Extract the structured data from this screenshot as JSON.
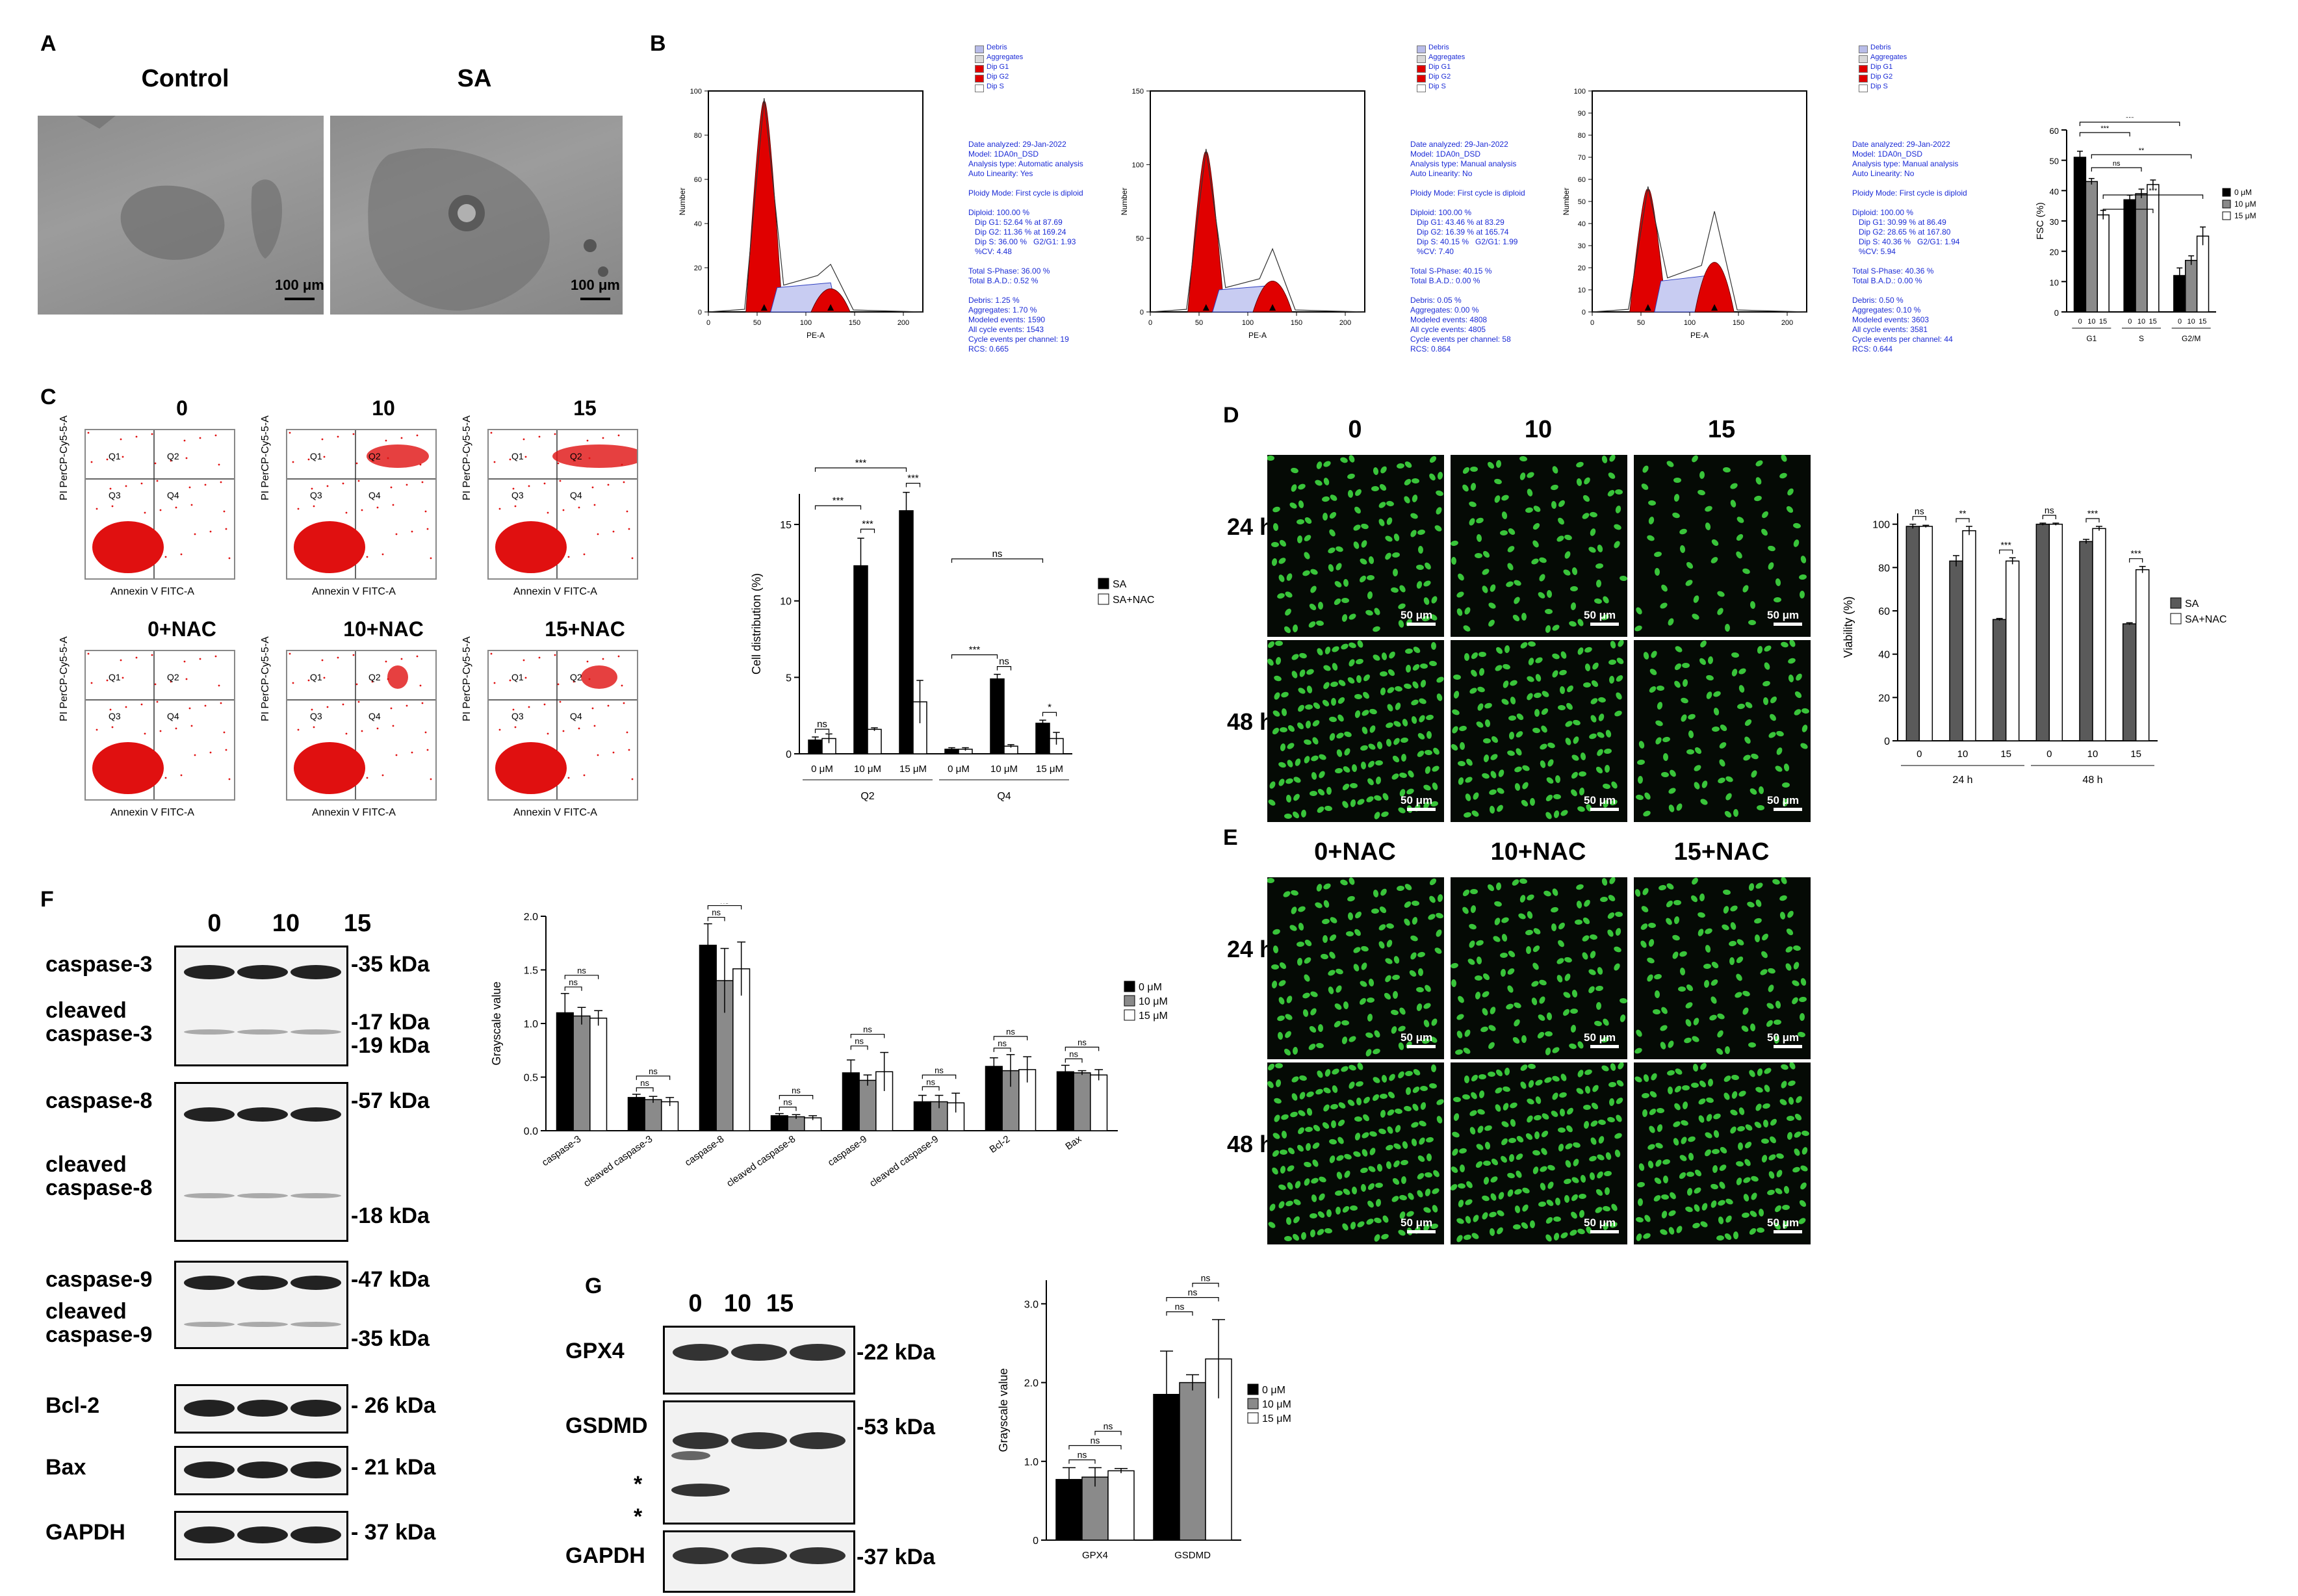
{
  "panels": {
    "A": "A",
    "B": "B",
    "C": "C",
    "D": "D",
    "E": "E",
    "F": "F",
    "G": "G"
  },
  "panelA": {
    "control": "Control",
    "sa": "SA",
    "scale": "100 μm"
  },
  "panelB": {
    "legend": [
      "Debris",
      "Aggregates",
      "Dip G1",
      "Dip G2",
      "Dip S"
    ],
    "xlabel": "PE-A",
    "ylabel": "Number",
    "xticks": [
      "0",
      "50",
      "100",
      "150",
      "200"
    ],
    "hist": [
      {
        "yticks": [
          "0",
          "20",
          "40",
          "60",
          "80",
          "100"
        ],
        "info": [
          "Date analyzed: 29-Jan-2022",
          "Model: 1DA0n_DSD",
          "Analysis type: Automatic analysis",
          "Auto Linearity: Yes",
          "",
          "Ploidy Mode: First cycle is diploid",
          "",
          "Diploid: 100.00 %",
          "   Dip G1: 52.64 % at 87.69",
          "   Dip G2: 11.36 % at 169.24",
          "   Dip S: 36.00 %   G2/G1: 1.93",
          "   %CV: 4.48",
          "",
          "Total S-Phase: 36.00 %",
          "Total B.A.D.: 0.52 %",
          "",
          "Debris: 1.25 %",
          "Aggregates: 1.70 %",
          "Modeled events: 1590",
          "All cycle events: 1543",
          "Cycle events per channel: 19",
          "RCS: 0.665"
        ]
      },
      {
        "yticks": [
          "0",
          "50",
          "100",
          "150"
        ],
        "info": [
          "Date analyzed: 29-Jan-2022",
          "Model: 1DA0n_DSD",
          "Analysis type: Manual analysis",
          "Auto Linearity: No",
          "",
          "Ploidy Mode: First cycle is diploid",
          "",
          "Diploid: 100.00 %",
          "   Dip G1: 43.46 % at 83.29",
          "   Dip G2: 16.39 % at 165.74",
          "   Dip S: 40.15 %   G2/G1: 1.99",
          "   %CV: 7.40",
          "",
          "Total S-Phase: 40.15 %",
          "Total B.A.D.: 0.00 %",
          "",
          "Debris: 0.05 %",
          "Aggregates: 0.00 %",
          "Modeled events: 4808",
          "All cycle events: 4805",
          "Cycle events per channel: 58",
          "RCS: 0.864"
        ]
      },
      {
        "yticks": [
          "0",
          "10",
          "20",
          "30",
          "40",
          "50",
          "60",
          "70",
          "80",
          "90",
          "100"
        ],
        "info": [
          "Date analyzed: 29-Jan-2022",
          "Model: 1DA0n_DSD",
          "Analysis type: Manual analysis",
          "Auto Linearity: No",
          "",
          "Ploidy Mode: First cycle is diploid",
          "",
          "Diploid: 100.00 %",
          "   Dip G1: 30.99 % at 86.49",
          "   Dip G2: 28.65 % at 167.80",
          "   Dip S: 40.36 %   G2/G1: 1.94",
          "   %CV: 5.94",
          "",
          "Total S-Phase: 40.36 %",
          "Total B.A.D.: 0.00 %",
          "",
          "Debris: 0.50 %",
          "Aggregates: 0.10 %",
          "Modeled events: 3603",
          "All cycle events: 3581",
          "Cycle events per channel: 44",
          "RCS: 0.644"
        ]
      }
    ]
  },
  "panelC": {
    "titles": [
      "0",
      "10",
      "15",
      "0+NAC",
      "10+NAC",
      "15+NAC"
    ],
    "xlabel": "Annexin V FITC-A",
    "ylabel": "PI PerCP-Cy5-5-A",
    "quads": [
      "Q1",
      "Q2",
      "Q3",
      "Q4"
    ]
  },
  "panelD": {
    "cols": [
      "0",
      "10",
      "15"
    ],
    "rows": [
      "24 h",
      "48 h"
    ],
    "scale": "50 μm"
  },
  "panelE": {
    "cols": [
      "0+NAC",
      "10+NAC",
      "15+NAC"
    ],
    "rows": [
      "24 h",
      "48 h"
    ],
    "scale": "50 μm"
  },
  "panelF": {
    "cols": [
      "0",
      "10",
      "15"
    ],
    "blots": [
      {
        "labels": [
          "caspase-3",
          "cleaved",
          "caspase-3"
        ],
        "kda": [
          "-35 kDa",
          "-17 kDa",
          "-19 kDa"
        ]
      },
      {
        "labels": [
          "caspase-8",
          "cleaved",
          "caspase-8"
        ],
        "kda": [
          "-57 kDa",
          "-18 kDa"
        ]
      },
      {
        "labels": [
          "caspase-9",
          "cleaved",
          "caspase-9"
        ],
        "kda": [
          "-47 kDa",
          "-35 kDa"
        ]
      },
      {
        "labels": [
          "Bcl-2"
        ],
        "kda": [
          "- 26 kDa"
        ]
      },
      {
        "labels": [
          "Bax"
        ],
        "kda": [
          "- 21 kDa"
        ]
      },
      {
        "labels": [
          "GAPDH"
        ],
        "kda": [
          "- 37 kDa"
        ]
      }
    ]
  },
  "panelG": {
    "cols": [
      "0",
      "10",
      "15"
    ],
    "blots": [
      {
        "labels": [
          "GPX4"
        ],
        "kda": [
          "-22 kDa"
        ]
      },
      {
        "labels": [
          "GSDMD",
          "*",
          "*"
        ],
        "kda": [
          "-53 kDa"
        ]
      },
      {
        "labels": [
          "GAPDH"
        ],
        "kda": [
          "-37 kDa"
        ]
      }
    ]
  },
  "chart_data": [
    {
      "id": "B-fsc",
      "type": "bar",
      "ylabel": "FSC (%)",
      "ylim": [
        0,
        60
      ],
      "yticks": [
        0,
        10,
        20,
        30,
        40,
        50,
        60
      ],
      "groups": [
        "G1",
        "S",
        "G2/M"
      ],
      "subcats": [
        "0",
        "10",
        "15"
      ],
      "series": [
        {
          "name": "0 μM",
          "color": "#000000",
          "values": [
            51,
            37,
            12
          ]
        },
        {
          "name": "10 μM",
          "color": "#8a8a8a",
          "values": [
            43,
            39,
            17
          ]
        },
        {
          "name": "15 μM",
          "color": "#ffffff",
          "values": [
            32,
            42,
            25
          ]
        }
      ],
      "errors": [
        [
          2,
          1.5,
          2.5
        ],
        [
          1,
          1.5,
          1.5
        ],
        [
          1.5,
          1.5,
          3
        ]
      ],
      "sig": [
        "***",
        "***",
        "**",
        "ns",
        "***",
        "*"
      ]
    },
    {
      "id": "C-dist",
      "type": "bar",
      "ylabel": "Cell distribution (%)",
      "ylim": [
        0,
        17
      ],
      "yticks": [
        0,
        5,
        10,
        15
      ],
      "groups": [
        "Q2",
        "Q4"
      ],
      "subcats": [
        "0 μM",
        "10 μM",
        "15 μM"
      ],
      "series": [
        {
          "name": "SA",
          "color": "#000000",
          "values": [
            0.9,
            12.3,
            15.9,
            0.3,
            4.9,
            2.0
          ]
        },
        {
          "name": "SA+NAC",
          "color": "#ffffff",
          "values": [
            1.0,
            1.6,
            3.4,
            0.3,
            0.5,
            1.0
          ]
        }
      ],
      "errors": [
        [
          0.2,
          1.8,
          1.2,
          0.1,
          0.3,
          0.2
        ],
        [
          0.3,
          0.1,
          1.4,
          0.1,
          0.1,
          0.4
        ]
      ],
      "sig": [
        "ns",
        "***",
        "***",
        "***",
        "***",
        "***",
        "ns",
        "*"
      ]
    },
    {
      "id": "D-via",
      "type": "bar",
      "ylabel": "Viability (%)",
      "ylim": [
        0,
        105
      ],
      "yticks": [
        0,
        20,
        40,
        60,
        80,
        100
      ],
      "groups": [
        "24 h",
        "48 h"
      ],
      "subcats": [
        "0",
        "10",
        "15"
      ],
      "series": [
        {
          "name": "SA",
          "color": "#5a5a5a",
          "values": [
            99,
            83,
            56,
            100,
            92,
            54
          ]
        },
        {
          "name": "SA+NAC",
          "color": "#ffffff",
          "values": [
            99,
            97,
            83,
            100,
            98,
            79
          ]
        }
      ],
      "errors": [
        [
          1,
          2.5,
          0.5,
          0.5,
          1,
          0.5
        ],
        [
          0.5,
          2,
          1.5,
          0.5,
          1,
          1.5
        ]
      ],
      "sig": [
        "ns",
        "**",
        "***",
        "ns",
        "***",
        "***"
      ]
    },
    {
      "id": "F-gray",
      "type": "bar",
      "ylabel": "Grayscale value",
      "ylim": [
        0,
        2.0
      ],
      "yticks": [
        "0.0",
        "0.5",
        "1.0",
        "1.5",
        "2.0"
      ],
      "categories": [
        "caspase-3",
        "cleaved caspase-3",
        "caspase-8",
        "cleaved caspase-8",
        "caspase-9",
        "cleaved caspase-9",
        "Bcl-2",
        "Bax"
      ],
      "series": [
        {
          "name": "0 μM",
          "color": "#000000",
          "values": [
            1.1,
            0.31,
            1.73,
            0.14,
            0.54,
            0.27,
            0.6,
            0.55
          ]
        },
        {
          "name": "10 μM",
          "color": "#8a8a8a",
          "values": [
            1.07,
            0.29,
            1.4,
            0.13,
            0.47,
            0.27,
            0.56,
            0.54
          ]
        },
        {
          "name": "15 μM",
          "color": "#ffffff",
          "values": [
            1.05,
            0.27,
            1.51,
            0.12,
            0.55,
            0.26,
            0.57,
            0.52
          ]
        }
      ],
      "errors": [
        [
          0.18,
          0.03,
          0.2,
          0.02,
          0.12,
          0.06,
          0.08,
          0.06
        ],
        [
          0.08,
          0.03,
          0.3,
          0.02,
          0.05,
          0.06,
          0.15,
          0.02
        ],
        [
          0.07,
          0.04,
          0.25,
          0.02,
          0.18,
          0.09,
          0.12,
          0.05
        ]
      ],
      "sig": "ns"
    },
    {
      "id": "G-gray",
      "type": "bar",
      "ylabel": "Grayscale value",
      "ylim": [
        0,
        3.3
      ],
      "yticks": [
        "0",
        "1.0",
        "2.0",
        "3.0"
      ],
      "categories": [
        "GPX4",
        "GSDMD"
      ],
      "series": [
        {
          "name": "0 μM",
          "color": "#000000",
          "values": [
            0.77,
            1.85
          ]
        },
        {
          "name": "10 μM",
          "color": "#8a8a8a",
          "values": [
            0.8,
            2.0
          ]
        },
        {
          "name": "15 μM",
          "color": "#ffffff",
          "values": [
            0.88,
            2.3
          ]
        }
      ],
      "errors": [
        [
          0.15,
          0.55
        ],
        [
          0.12,
          0.1
        ],
        [
          0.03,
          0.5
        ]
      ],
      "sig": "ns"
    }
  ]
}
